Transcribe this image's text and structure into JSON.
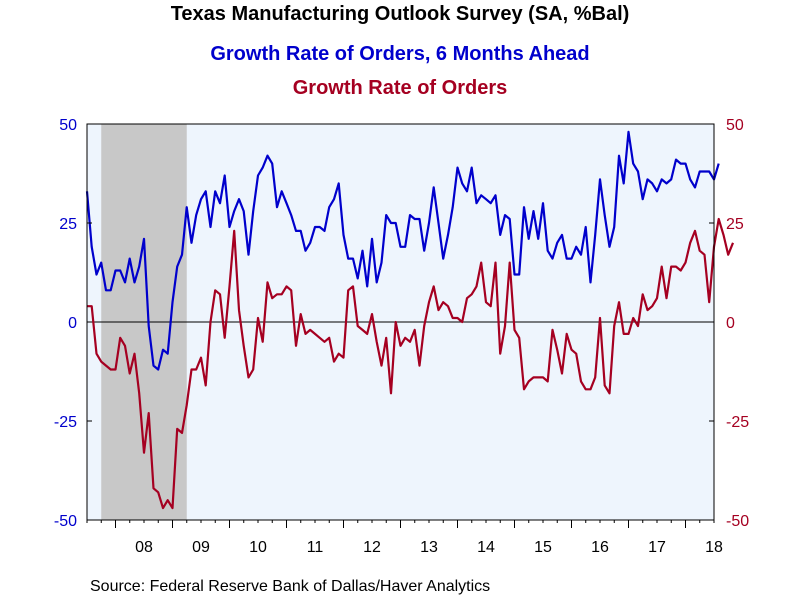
{
  "chart_data": {
    "type": "line",
    "title": "Texas Manufacturing Outlook Survey (SA, %Bal)",
    "x_tick_labels": [
      "08",
      "09",
      "10",
      "11",
      "12",
      "13",
      "14",
      "15",
      "16",
      "17",
      "18"
    ],
    "y_left_ticks": [
      "50",
      "25",
      "0",
      "-25",
      "-50"
    ],
    "y_right_ticks": [
      "50",
      "25",
      "0",
      "-25",
      "-50"
    ],
    "ylim": [
      -50,
      50
    ],
    "x_start": 2007.5,
    "x_end": 2018.5,
    "recession_shade": [
      2007.75,
      2009.25
    ],
    "grid": false,
    "zero_line": true,
    "plot_background": "#eef5fd",
    "shade_color": "#c8c8c8",
    "series": [
      {
        "name": "Growth Rate of Orders, 6 Months Ahead",
        "color": "#0000cc",
        "start": 2007.5,
        "step": 0.0833333,
        "values": [
          33,
          19,
          12,
          15,
          8,
          8,
          13,
          13,
          10,
          16,
          10,
          14,
          21,
          -1,
          -11,
          -12,
          -7,
          -8,
          5,
          14,
          17,
          29,
          20,
          27,
          31,
          33,
          24,
          33,
          30,
          37,
          24,
          28,
          31,
          28,
          17,
          28,
          37,
          39,
          42,
          40,
          29,
          33,
          30,
          27,
          23,
          23,
          18,
          20,
          24,
          24,
          23,
          29,
          31,
          35,
          22,
          16,
          16,
          11,
          18,
          9,
          21,
          10,
          15,
          27,
          25,
          25,
          19,
          19,
          27,
          26,
          26,
          18,
          25,
          34,
          25,
          16,
          22,
          29,
          39,
          35,
          33,
          39,
          30,
          32,
          31,
          30,
          32,
          22,
          27,
          26,
          12,
          12,
          29,
          21,
          28,
          21,
          30,
          18,
          16,
          20,
          22,
          16,
          16,
          19,
          17,
          24,
          10,
          22,
          36,
          27,
          19,
          24,
          42,
          35,
          48,
          40,
          38,
          31,
          36,
          35,
          33,
          36,
          35,
          36,
          41,
          40,
          40,
          36,
          34,
          38,
          38,
          38,
          36,
          40
        ]
      },
      {
        "name": "Growth Rate of Orders",
        "color": "#a50021",
        "start": 2007.5,
        "step": 0.0833333,
        "values": [
          4,
          4,
          -8,
          -10,
          -11,
          -12,
          -12,
          -4,
          -6,
          -13,
          -8,
          -18,
          -33,
          -23,
          -42,
          -43,
          -47,
          -45,
          -47,
          -27,
          -28,
          -21,
          -12,
          -12,
          -9,
          -16,
          0,
          8,
          7,
          -4,
          9,
          23,
          3,
          -6,
          -14,
          -12,
          1,
          -5,
          10,
          6,
          7,
          7,
          9,
          8,
          -6,
          2,
          -3,
          -2,
          -3,
          -4,
          -5,
          -4,
          -10,
          -8,
          -9,
          8,
          9,
          -1,
          -2,
          -3,
          2,
          -5,
          -11,
          -4,
          -18,
          0,
          -6,
          -4,
          -5,
          -2,
          -11,
          -1,
          5,
          9,
          3,
          5,
          4,
          1,
          1,
          0,
          6,
          7,
          9,
          15,
          5,
          4,
          15,
          -8,
          -1,
          15,
          -2,
          -4,
          -17,
          -15,
          -14,
          -14,
          -14,
          -15,
          -2,
          -7,
          -13,
          -3,
          -7,
          -8,
          -15,
          -17,
          -17,
          -14,
          1,
          -16,
          -18,
          -1,
          5,
          -3,
          -3,
          1,
          -1,
          7,
          3,
          4,
          6,
          14,
          6,
          14,
          14,
          13,
          15,
          20,
          23,
          18,
          17,
          5,
          19,
          26,
          22,
          17,
          20
        ]
      }
    ]
  },
  "source": "Source:  Federal Reserve Bank of Dallas/Haver Analytics"
}
